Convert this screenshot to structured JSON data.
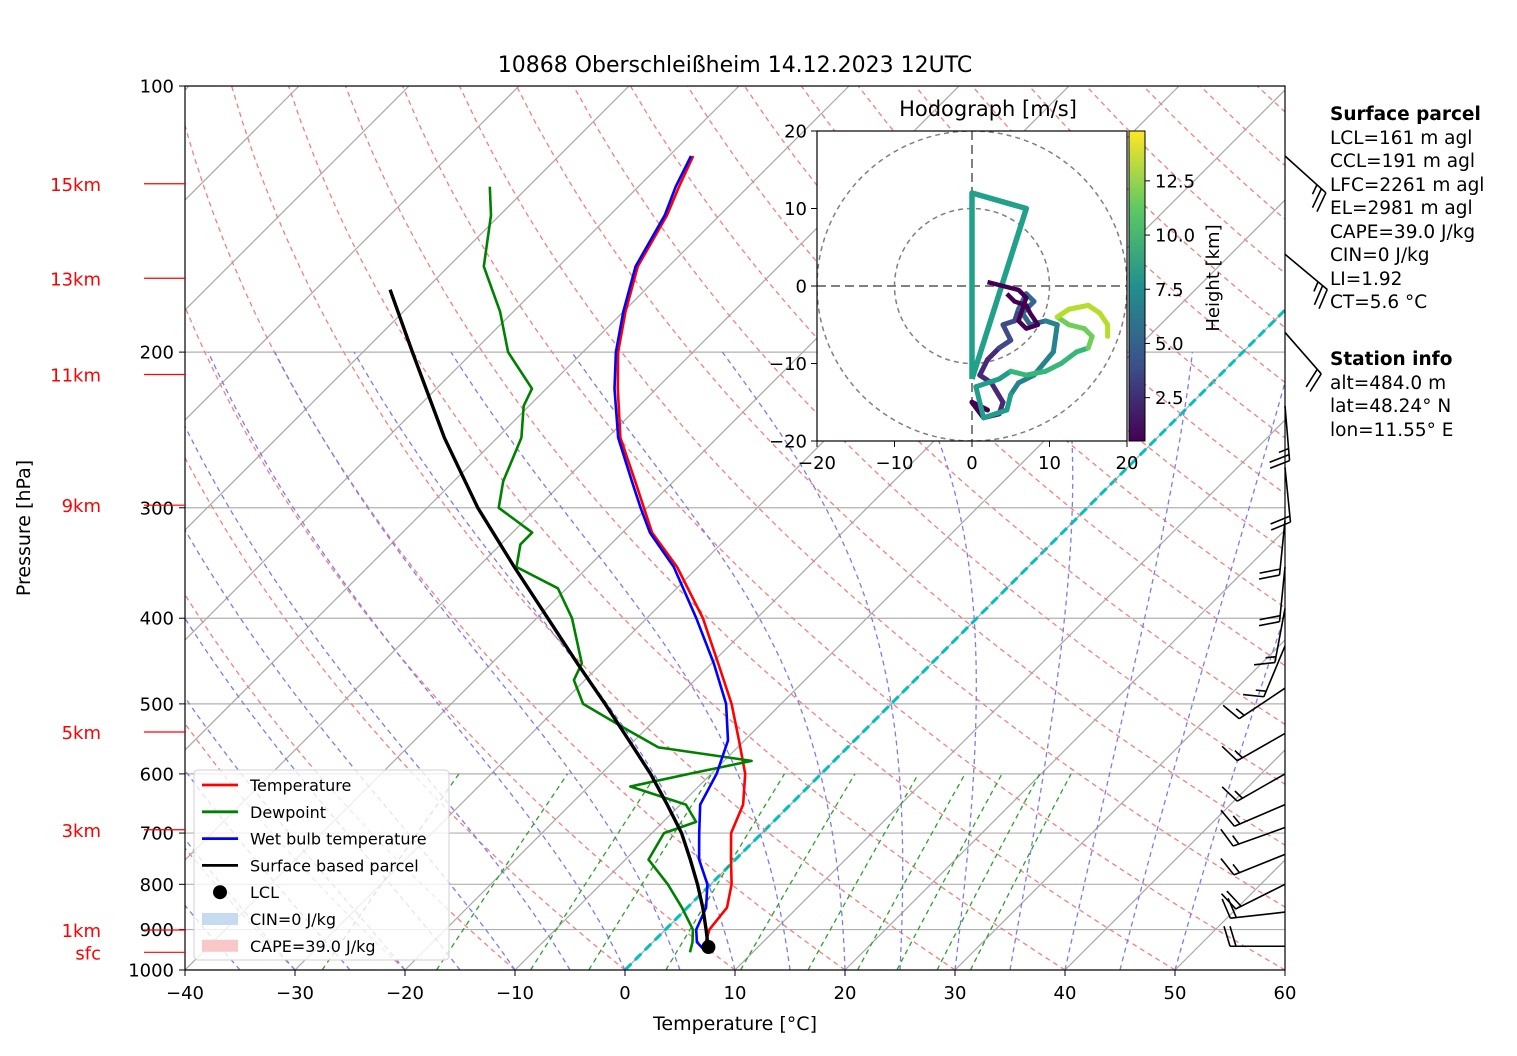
{
  "title": "10868 Oberschleißheim 14.12.2023 12UTC",
  "chart_data": {
    "type": "line",
    "subtype": "skew-T log-p",
    "title": "10868 Oberschleißheim 14.12.2023 12UTC",
    "xlabel": "Temperature [°C]",
    "ylabel": "Pressure [hPa]",
    "xlim": [
      -40,
      60
    ],
    "ylim": [
      1000,
      100
    ],
    "y_scale": "log",
    "grid": true,
    "x_ticks": [
      "−40",
      "−30",
      "−20",
      "−10",
      "0",
      "10",
      "20",
      "30",
      "40",
      "50",
      "60"
    ],
    "y_ticks": [
      "100",
      "200",
      "300",
      "400",
      "500",
      "600",
      "700",
      "800",
      "900",
      "1000"
    ],
    "height_labels": [
      {
        "label": "15km",
        "p": 129
      },
      {
        "label": "13km",
        "p": 165
      },
      {
        "label": "11km",
        "p": 212
      },
      {
        "label": "9km",
        "p": 298
      },
      {
        "label": "5km",
        "p": 538
      },
      {
        "label": "3km",
        "p": 694
      },
      {
        "label": "1km",
        "p": 901
      },
      {
        "label": "sfc",
        "p": 955
      }
    ],
    "colors": {
      "temperature": "#ff0000",
      "dewpoint": "#008000",
      "wetbulb": "#0000ff",
      "parcel": "#000000",
      "dry_adiabats": "#f08080",
      "moist_adiabats": "#7b7bef",
      "mixing_ratio": "#2ca02c",
      "isotherm_zero": "#00bfbf",
      "height_labels": "#ff0000"
    },
    "series": [
      {
        "name": "Temperature",
        "points": [
          [
            955,
            6.4
          ],
          [
            930,
            4.8
          ],
          [
            900,
            4.0
          ],
          [
            850,
            3.6
          ],
          [
            800,
            1.9
          ],
          [
            750,
            -0.4
          ],
          [
            700,
            -2.8
          ],
          [
            650,
            -4.3
          ],
          [
            600,
            -6.9
          ],
          [
            550,
            -10.5
          ],
          [
            500,
            -14.5
          ],
          [
            450,
            -19.4
          ],
          [
            400,
            -24.9
          ],
          [
            350,
            -31.9
          ],
          [
            320,
            -37.3
          ],
          [
            300,
            -40.3
          ],
          [
            280,
            -43.5
          ],
          [
            250,
            -48.8
          ],
          [
            220,
            -53.5
          ],
          [
            200,
            -56.8
          ],
          [
            180,
            -59.8
          ],
          [
            160,
            -62.8
          ],
          [
            140,
            -64.8
          ],
          [
            130,
            -66.3
          ],
          [
            120,
            -67.8
          ]
        ]
      },
      {
        "name": "Dewpoint",
        "points": [
          [
            955,
            4.3
          ],
          [
            930,
            3.6
          ],
          [
            900,
            2.5
          ],
          [
            850,
            -0.5
          ],
          [
            800,
            -3.9
          ],
          [
            750,
            -7.9
          ],
          [
            700,
            -8.9
          ],
          [
            680,
            -7.0
          ],
          [
            650,
            -9.5
          ],
          [
            620,
            -16.2
          ],
          [
            600,
            -12.0
          ],
          [
            580,
            -7.5
          ],
          [
            560,
            -17.2
          ],
          [
            530,
            -22.5
          ],
          [
            500,
            -28.0
          ],
          [
            470,
            -31.0
          ],
          [
            450,
            -31.8
          ],
          [
            400,
            -36.8
          ],
          [
            370,
            -40.8
          ],
          [
            350,
            -46.5
          ],
          [
            330,
            -48.2
          ],
          [
            320,
            -48.2
          ],
          [
            300,
            -53.5
          ],
          [
            280,
            -55.5
          ],
          [
            250,
            -57.8
          ],
          [
            230,
            -60.5
          ],
          [
            220,
            -61.3
          ],
          [
            200,
            -66.8
          ],
          [
            180,
            -71.2
          ],
          [
            160,
            -76.8
          ],
          [
            140,
            -80.8
          ],
          [
            130,
            -83.5
          ]
        ]
      },
      {
        "name": "Wet bulb temperature",
        "points": [
          [
            955,
            5.8
          ],
          [
            930,
            4.0
          ],
          [
            900,
            2.8
          ],
          [
            850,
            1.7
          ],
          [
            800,
            -0.3
          ],
          [
            750,
            -3.3
          ],
          [
            700,
            -5.7
          ],
          [
            650,
            -8.2
          ],
          [
            600,
            -9.5
          ],
          [
            550,
            -11.5
          ],
          [
            500,
            -15.0
          ],
          [
            450,
            -19.8
          ],
          [
            400,
            -25.5
          ],
          [
            350,
            -32.2
          ],
          [
            320,
            -37.5
          ],
          [
            300,
            -40.6
          ],
          [
            280,
            -43.8
          ],
          [
            250,
            -49.0
          ],
          [
            220,
            -53.8
          ],
          [
            200,
            -57.0
          ],
          [
            180,
            -60.0
          ],
          [
            160,
            -63.0
          ],
          [
            140,
            -65.0
          ],
          [
            130,
            -66.6
          ],
          [
            120,
            -68.0
          ]
        ]
      },
      {
        "name": "Surface based parcel",
        "points": [
          [
            955,
            6.3
          ],
          [
            945,
            5.6
          ],
          [
            900,
            3.7
          ],
          [
            850,
            1.4
          ],
          [
            800,
            -1.2
          ],
          [
            750,
            -4.1
          ],
          [
            700,
            -7.3
          ],
          [
            650,
            -11.2
          ],
          [
            600,
            -15.5
          ],
          [
            550,
            -20.5
          ],
          [
            500,
            -26.0
          ],
          [
            450,
            -32.2
          ],
          [
            400,
            -39.0
          ],
          [
            350,
            -46.7
          ],
          [
            300,
            -55.4
          ],
          [
            250,
            -64.8
          ],
          [
            200,
            -75.5
          ],
          [
            170,
            -83.2
          ]
        ]
      }
    ],
    "lcl": {
      "p": 942,
      "t": 5.5
    },
    "legend": {
      "placement": "lower-left",
      "entries": [
        "Temperature",
        "Dewpoint",
        "Wet bulb temperature",
        "Surface based parcel",
        "LCL",
        "CIN=0 J/kg",
        "CAPE=39.0 J/kg"
      ]
    },
    "hodograph": {
      "title": "Hodograph [m/s]",
      "xlim": [
        -20,
        20
      ],
      "ylim": [
        -20,
        20
      ],
      "ticks": [
        "−20",
        "−10",
        "0",
        "10",
        "20"
      ],
      "colorbar_label": "Height [km]",
      "colorbar_ticks": [
        "2.5",
        "5.0",
        "7.5",
        "10.0",
        "12.5"
      ],
      "colorbar_range": [
        0.5,
        14.8
      ],
      "rings": [
        10,
        20
      ],
      "path": [
        [
          2.0,
          -16.0,
          0.5
        ],
        [
          0.0,
          -15.0,
          0.9
        ],
        [
          1.5,
          -17.0,
          1.3
        ],
        [
          3.5,
          -16.5,
          1.7
        ],
        [
          4.0,
          -15.0,
          2.0
        ],
        [
          2.5,
          -12.5,
          2.4
        ],
        [
          1.0,
          -11.5,
          2.7
        ],
        [
          2.0,
          -9.5,
          3.0
        ],
        [
          3.5,
          -8.0,
          3.3
        ],
        [
          5.0,
          -7.0,
          3.6
        ],
        [
          4.0,
          -5.0,
          3.9
        ],
        [
          5.5,
          -4.5,
          4.2
        ],
        [
          6.0,
          -3.0,
          4.5
        ],
        [
          7.0,
          -1.0,
          4.8
        ],
        [
          8.0,
          -2.0,
          5.1
        ],
        [
          6.5,
          -3.5,
          5.4
        ],
        [
          7.5,
          -5.0,
          5.7
        ],
        [
          9.5,
          -4.5,
          6.0
        ],
        [
          11.0,
          -5.0,
          6.3
        ],
        [
          10.5,
          -8.5,
          6.6
        ],
        [
          8.0,
          -11.5,
          6.9
        ],
        [
          6.0,
          -12.5,
          7.2
        ],
        [
          5.0,
          -14.0,
          7.5
        ],
        [
          4.5,
          -16.0,
          7.8
        ],
        [
          1.5,
          -17.0,
          8.1
        ],
        [
          0.5,
          -13.0,
          8.4
        ],
        [
          3.5,
          -12.0,
          8.7
        ],
        [
          5.0,
          -11.0,
          9.0
        ],
        [
          7.0,
          -11.5,
          9.3
        ],
        [
          9.5,
          -11.0,
          9.6
        ],
        [
          11.5,
          -10.0,
          9.9
        ],
        [
          13.5,
          -8.5,
          10.2
        ],
        [
          15.0,
          -8.0,
          10.5
        ],
        [
          15.5,
          -6.5,
          10.8
        ],
        [
          14.5,
          -5.5,
          11.1
        ],
        [
          12.5,
          -5.0,
          11.4
        ],
        [
          11.0,
          -4.0,
          11.7
        ],
        [
          12.5,
          -3.0,
          12.0
        ],
        [
          15.0,
          -2.5,
          12.3
        ],
        [
          16.5,
          -3.5,
          12.6
        ],
        [
          17.5,
          -5.0,
          12.9
        ],
        [
          17.5,
          -6.5,
          13.2
        ]
      ],
      "upper_jet": [
        [
          0.0,
          -12.0
        ],
        [
          0.0,
          12.0
        ],
        [
          7.0,
          10.0
        ],
        [
          0.0,
          -12.0
        ]
      ],
      "upper_jet_color": "#21a08a",
      "inner_loop": [
        [
          2.0,
          0.5
        ],
        [
          4.0,
          0.0
        ],
        [
          6.0,
          -0.5
        ],
        [
          7.0,
          -1.5
        ],
        [
          6.5,
          -3.0
        ],
        [
          6.0,
          -4.5
        ],
        [
          7.0,
          -5.5
        ],
        [
          8.5,
          -5.0
        ],
        [
          7.5,
          -3.5
        ],
        [
          7.0,
          -2.5
        ],
        [
          5.5,
          -2.0
        ],
        [
          4.5,
          -1.0
        ]
      ]
    },
    "wind_barbs": [
      {
        "p": 120,
        "u": -20,
        "v": 18
      },
      {
        "p": 155,
        "u": -18,
        "v": 15
      },
      {
        "p": 190,
        "u": -14,
        "v": 16
      },
      {
        "p": 230,
        "u": -2,
        "v": 24
      },
      {
        "p": 270,
        "u": -2,
        "v": 20
      },
      {
        "p": 310,
        "u": 2,
        "v": 20
      },
      {
        "p": 350,
        "u": 2,
        "v": 20
      },
      {
        "p": 390,
        "u": 3,
        "v": 16
      },
      {
        "p": 430,
        "u": 5,
        "v": 12
      },
      {
        "p": 480,
        "u": 12,
        "v": 8
      },
      {
        "p": 540,
        "u": 14,
        "v": 8
      },
      {
        "p": 600,
        "u": 14,
        "v": 8
      },
      {
        "p": 650,
        "u": 14,
        "v": 6
      },
      {
        "p": 690,
        "u": 14,
        "v": 5
      },
      {
        "p": 740,
        "u": 15,
        "v": 6
      },
      {
        "p": 800,
        "u": 16,
        "v": 8
      },
      {
        "p": 860,
        "u": 18,
        "v": 2
      },
      {
        "p": 940,
        "u": 18,
        "v": 0
      }
    ]
  },
  "surface_parcel": {
    "heading": "Surface parcel",
    "lines": [
      "LCL=161 m agl",
      "CCL=191 m agl",
      "LFC=2261 m agl",
      "EL=2981 m agl",
      "CAPE=39.0 J/kg",
      "CIN=0 J/kg",
      "LI=1.92",
      "CT=5.6 °C"
    ]
  },
  "station_info": {
    "heading": "Station info",
    "lines": [
      "alt=484.0 m",
      "lat=48.24° N",
      "lon=11.55° E"
    ]
  }
}
